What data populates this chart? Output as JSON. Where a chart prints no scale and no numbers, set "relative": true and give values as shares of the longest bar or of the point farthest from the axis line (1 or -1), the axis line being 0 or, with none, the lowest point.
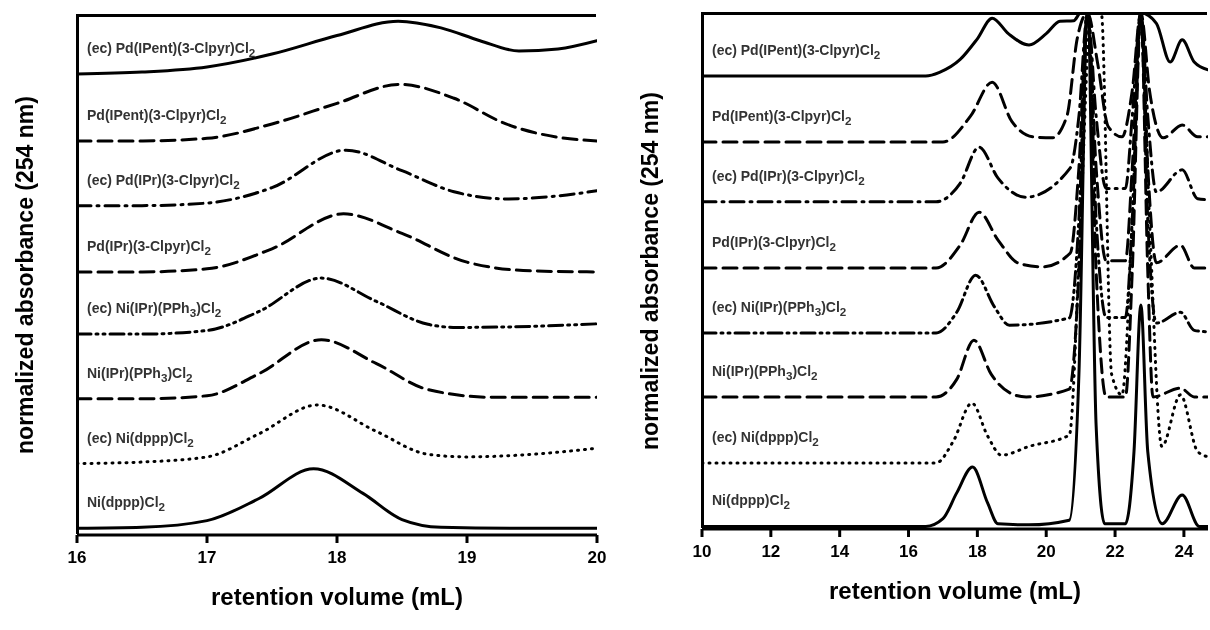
{
  "chart_data": [
    {
      "type": "line",
      "relative": true,
      "xlabel": "retention volume (mL)",
      "ylabel": "normalized absorbance (254 nm)",
      "xlim": [
        16,
        20
      ],
      "xticks": [
        16,
        17,
        18,
        19,
        20
      ],
      "series": [
        {
          "name": "(ec) Pd(IPent)(3-Clpyr)Cl$_{2}$",
          "color": "#000000",
          "line_style": "solid",
          "x": [
            16,
            16.5,
            17,
            17.5,
            18,
            18.47,
            18.8,
            19.1,
            19.4,
            19.7,
            20
          ],
          "values": [
            0.897,
            0.901,
            0.911,
            0.936,
            0.972,
            1,
            0.987,
            0.962,
            0.942,
            0.946,
            0.962
          ]
        },
        {
          "name": "Pd(IPent)(3-Clpyr)Cl$_{2}$",
          "color": "#000000",
          "line_style": "dashed",
          "x": [
            16,
            16.5,
            17,
            17.5,
            18,
            18.48,
            18.9,
            19.3,
            19.7,
            20
          ],
          "values": [
            0.767,
            0.767,
            0.772,
            0.8,
            0.84,
            0.877,
            0.85,
            0.8,
            0.774,
            0.767
          ]
        },
        {
          "name": "(ec) Pd(IPr)(3-Clpyr)Cl$_{2}$",
          "color": "#000000",
          "line_style": "dashdot",
          "x": [
            16,
            16.5,
            17,
            17.5,
            18.07,
            18.5,
            18.9,
            19.32,
            19.7,
            20
          ],
          "values": [
            0.641,
            0.641,
            0.646,
            0.676,
            0.749,
            0.709,
            0.668,
            0.654,
            0.66,
            0.67
          ]
        },
        {
          "name": "Pd(IPr)(3-Clpyr)Cl$_{2}$",
          "color": "#000000",
          "line_style": "dashed",
          "x": [
            16,
            16.5,
            17,
            17.5,
            18.05,
            18.5,
            19,
            19.5,
            20
          ],
          "values": [
            0.512,
            0.512,
            0.518,
            0.557,
            0.625,
            0.587,
            0.531,
            0.514,
            0.512
          ]
        },
        {
          "name": "(ec) Ni(IPr)(PPh$_{3}$)Cl$_{2}$",
          "color": "#000000",
          "line_style": "dashdotdot",
          "x": [
            16,
            16.5,
            17,
            17.4,
            17.88,
            18.3,
            18.7,
            18.92,
            19.5,
            20
          ],
          "values": [
            0.391,
            0.391,
            0.398,
            0.435,
            0.5,
            0.455,
            0.41,
            0.404,
            0.406,
            0.411
          ]
        },
        {
          "name": "Ni(IPr)(PPh$_{3}$)Cl$_{2}$",
          "color": "#000000",
          "line_style": "dashed",
          "x": [
            16,
            16.5,
            17,
            17.4,
            17.88,
            18.3,
            18.7,
            19.2,
            20
          ],
          "values": [
            0.265,
            0.265,
            0.271,
            0.314,
            0.38,
            0.334,
            0.283,
            0.268,
            0.268
          ]
        },
        {
          "name": "(ec) Ni(dppp)Cl$_{2}$",
          "color": "#000000",
          "line_style": "dotted",
          "x": [
            16,
            16.5,
            17,
            17.4,
            17.85,
            18.3,
            18.7,
            19,
            19.5,
            20
          ],
          "values": [
            0.139,
            0.142,
            0.152,
            0.197,
            0.253,
            0.202,
            0.157,
            0.152,
            0.157,
            0.169
          ]
        },
        {
          "name": "Ni(dppp)Cl$_{2}$",
          "color": "#000000",
          "line_style": "solid",
          "x": [
            16,
            16.5,
            17,
            17.4,
            17.82,
            18.2,
            18.5,
            18.8,
            19.5,
            20
          ],
          "values": [
            0.013,
            0.015,
            0.028,
            0.071,
            0.129,
            0.081,
            0.03,
            0.015,
            0.013,
            0.013
          ]
        }
      ]
    },
    {
      "type": "line",
      "relative": true,
      "xlabel": "retention volume (mL)",
      "ylabel": "normalized absorbance (254 nm)",
      "xlim": [
        10,
        24.7
      ],
      "xticks": [
        10,
        12,
        14,
        16,
        18,
        20,
        22,
        24
      ],
      "series": [
        {
          "name": "(ec) Pd(IPent)(3-Clpyr)Cl$_{2}$",
          "color": "#000000",
          "line_style": "solid",
          "x": [
            10,
            16.5,
            16.9,
            17.5,
            18,
            18.43,
            18.9,
            19.5,
            20,
            20.4,
            20.8,
            21,
            21.2,
            22.75,
            23.2,
            23.6,
            23.95,
            24.3,
            24.7
          ],
          "values": [
            0.878,
            0.878,
            0.885,
            0.91,
            0.95,
            0.99,
            0.96,
            0.938,
            0.96,
            0.984,
            0.985,
            1,
            1,
            1,
            0.98,
            0.905,
            0.948,
            0.905,
            0.89
          ]
        },
        {
          "name": "Pd(IPent)(3-Clpyr)Cl$_{2}$",
          "color": "#000000",
          "line_style": "dashed",
          "x": [
            10,
            17,
            17.8,
            18.43,
            19,
            19.6,
            20.17,
            20.6,
            20.9,
            21.2,
            21.5,
            21.8,
            22.2,
            22.5,
            22.75,
            23,
            23.4,
            23.95,
            24.4,
            24.7
          ],
          "values": [
            0.75,
            0.75,
            0.8,
            0.866,
            0.79,
            0.76,
            0.758,
            0.8,
            0.95,
            1,
            0.9,
            0.78,
            0.76,
            0.85,
            1,
            0.85,
            0.758,
            0.783,
            0.76,
            0.76
          ]
        },
        {
          "name": "(ec) Pd(IPr)(3-Clpyr)Cl$_{2}$",
          "color": "#000000",
          "line_style": "dashdot",
          "x": [
            10,
            16.8,
            17.5,
            18.05,
            18.6,
            19.4,
            20.7,
            20.95,
            21.2,
            21.45,
            21.74,
            22.3,
            22.5,
            22.75,
            22.95,
            23.2,
            23.95,
            24.4,
            24.7
          ],
          "values": [
            0.634,
            0.634,
            0.67,
            0.74,
            0.68,
            0.643,
            0.7,
            0.8,
            1,
            0.8,
            0.66,
            0.66,
            0.8,
            1,
            0.8,
            0.653,
            0.696,
            0.64,
            0.638
          ]
        },
        {
          "name": "Pd(IPr)(3-Clpyr)Cl$_{2}$",
          "color": "#000000",
          "line_style": "dashed",
          "x": [
            10,
            16.8,
            17.5,
            18.05,
            18.6,
            19.2,
            19.9,
            20.7,
            20.95,
            21.2,
            21.45,
            21.74,
            22.3,
            22.5,
            22.75,
            22.95,
            23.2,
            23.9,
            24.3,
            24.7
          ],
          "values": [
            0.506,
            0.506,
            0.55,
            0.614,
            0.56,
            0.515,
            0.508,
            0.535,
            0.7,
            1,
            0.7,
            0.52,
            0.52,
            0.7,
            1,
            0.7,
            0.516,
            0.55,
            0.506,
            0.506
          ]
        },
        {
          "name": "(ec) Ni(IPr)(PPh$_{3}$)Cl$_{2}$",
          "color": "#000000",
          "line_style": "dashdotdot",
          "x": [
            10,
            16.8,
            17.4,
            17.95,
            18.5,
            18.93,
            20.67,
            20.95,
            21.2,
            21.45,
            21.74,
            22.3,
            22.5,
            22.75,
            22.95,
            23.2,
            23.9,
            24.3,
            24.7
          ],
          "values": [
            0.38,
            0.38,
            0.42,
            0.492,
            0.43,
            0.395,
            0.409,
            0.6,
            1,
            0.6,
            0.41,
            0.41,
            0.6,
            1,
            0.6,
            0.399,
            0.42,
            0.385,
            0.382
          ]
        },
        {
          "name": "Ni(IPr)(PPh$_{3}$)Cl$_{2}$",
          "color": "#000000",
          "line_style": "dashed",
          "x": [
            10,
            16.8,
            17.4,
            17.9,
            18.4,
            19,
            19.42,
            20.67,
            20.95,
            21.2,
            21.45,
            21.74,
            22.3,
            22.5,
            22.75,
            22.95,
            23.1,
            23.9,
            24.3,
            24.7
          ],
          "values": [
            0.256,
            0.256,
            0.29,
            0.366,
            0.3,
            0.262,
            0.256,
            0.271,
            0.5,
            1,
            0.5,
            0.256,
            0.256,
            0.5,
            1,
            0.5,
            0.256,
            0.273,
            0.256,
            0.256
          ]
        },
        {
          "name": "(ec) Ni(dppp)Cl$_{2}$",
          "color": "#000000",
          "line_style": "dotted",
          "x": [
            10,
            16.8,
            17.3,
            17.84,
            18.3,
            18.7,
            19.5,
            20.67,
            21,
            21.3,
            21.6,
            21.9,
            22.2,
            22.5,
            22.75,
            23,
            23.36,
            23.9,
            24.4,
            24.7
          ],
          "values": [
            0.128,
            0.128,
            0.17,
            0.244,
            0.18,
            0.143,
            0.16,
            0.182,
            0.6,
            1,
            1,
            0.3,
            0.26,
            0.6,
            1,
            0.6,
            0.16,
            0.26,
            0.15,
            0.14
          ]
        },
        {
          "name": "Ni(dppp)Cl$_{2}$",
          "color": "#000000",
          "line_style": "solid",
          "x": [
            10,
            16.5,
            17,
            17.4,
            17.86,
            18.3,
            18.6,
            19.5,
            20.67,
            20.95,
            21.2,
            21.45,
            21.7,
            22.3,
            22.55,
            22.75,
            22.95,
            23.37,
            23.95,
            24.45,
            24.7
          ],
          "values": [
            0.005,
            0.005,
            0.02,
            0.07,
            0.12,
            0.05,
            0.01,
            0.008,
            0.017,
            0.3,
            1,
            0.2,
            0.01,
            0.01,
            0.15,
            0.434,
            0.15,
            0.01,
            0.066,
            0.005,
            0.005
          ]
        }
      ]
    }
  ]
}
